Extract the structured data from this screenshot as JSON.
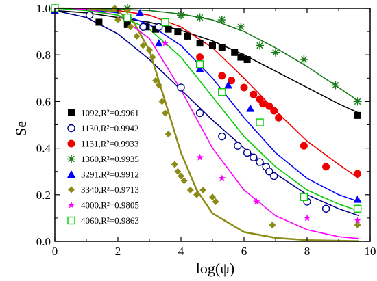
{
  "chart_data": {
    "type": "scatter",
    "xlabel": "log(ψ)",
    "ylabel": "Se",
    "xlim": [
      0,
      10
    ],
    "ylim": [
      0,
      1.0
    ],
    "x_ticks": [
      0,
      2,
      4,
      6,
      8,
      10
    ],
    "y_ticks": [
      0.0,
      0.2,
      0.4,
      0.6,
      0.8,
      1.0
    ],
    "x_tick_labels": [
      "0",
      "2",
      "4",
      "6",
      "8",
      "10"
    ],
    "y_tick_labels": [
      "0.0",
      "0.2",
      "0.4",
      "0.6",
      "0.8",
      "1.0"
    ],
    "legend_position": "left",
    "series": [
      {
        "name": "1092,R²=0.9961",
        "color": "#000000",
        "marker": "square-filled",
        "points": [
          [
            0,
            1.0
          ],
          [
            1.4,
            0.94
          ],
          [
            2.3,
            0.93
          ],
          [
            2.9,
            0.92
          ],
          [
            3.2,
            0.91
          ],
          [
            3.6,
            0.91
          ],
          [
            3.9,
            0.9
          ],
          [
            4.2,
            0.88
          ],
          [
            4.6,
            0.85
          ],
          [
            5.0,
            0.84
          ],
          [
            5.3,
            0.83
          ],
          [
            5.7,
            0.81
          ],
          [
            5.9,
            0.79
          ],
          [
            6.1,
            0.78
          ],
          [
            9.6,
            0.54
          ]
        ],
        "curve": [
          [
            0,
            0.99
          ],
          [
            1,
            0.98
          ],
          [
            2,
            0.96
          ],
          [
            3,
            0.94
          ],
          [
            4,
            0.905
          ],
          [
            5,
            0.86
          ],
          [
            6,
            0.8
          ],
          [
            7,
            0.73
          ],
          [
            8,
            0.66
          ],
          [
            9,
            0.59
          ],
          [
            9.65,
            0.55
          ]
        ]
      },
      {
        "name": "1130,R²=0.9942",
        "color": "#00008B",
        "marker": "circle-open",
        "points": [
          [
            0,
            1.0
          ],
          [
            1.1,
            0.97
          ],
          [
            2.3,
            0.96
          ],
          [
            2.8,
            0.92
          ],
          [
            3.3,
            0.92
          ],
          [
            4.0,
            0.66
          ],
          [
            4.6,
            0.55
          ],
          [
            5.3,
            0.45
          ],
          [
            5.8,
            0.41
          ],
          [
            6.1,
            0.38
          ],
          [
            6.3,
            0.36
          ],
          [
            6.5,
            0.34
          ],
          [
            6.7,
            0.32
          ],
          [
            6.8,
            0.3
          ],
          [
            6.95,
            0.28
          ],
          [
            8.0,
            0.17
          ],
          [
            8.6,
            0.14
          ],
          [
            9.6,
            0.14
          ]
        ],
        "curve": [
          [
            0,
            0.99
          ],
          [
            1,
            0.96
          ],
          [
            2,
            0.89
          ],
          [
            3,
            0.78
          ],
          [
            4,
            0.65
          ],
          [
            5,
            0.52
          ],
          [
            6,
            0.4
          ],
          [
            7,
            0.29
          ],
          [
            8,
            0.2
          ],
          [
            9,
            0.14
          ],
          [
            9.65,
            0.11
          ]
        ]
      },
      {
        "name": "1131,R²=0.9933",
        "color": "#EE0000",
        "marker": "circle-filled",
        "points": [
          [
            4.6,
            0.79
          ],
          [
            5.3,
            0.71
          ],
          [
            5.6,
            0.69
          ],
          [
            6.0,
            0.66
          ],
          [
            6.3,
            0.63
          ],
          [
            6.5,
            0.61
          ],
          [
            6.6,
            0.59
          ],
          [
            6.8,
            0.58
          ],
          [
            6.95,
            0.56
          ],
          [
            7.1,
            0.53
          ],
          [
            7.9,
            0.41
          ],
          [
            8.6,
            0.32
          ],
          [
            9.6,
            0.29
          ]
        ],
        "curve": [
          [
            0,
            0.999
          ],
          [
            1,
            0.997
          ],
          [
            2,
            0.99
          ],
          [
            3,
            0.97
          ],
          [
            4,
            0.92
          ],
          [
            5,
            0.83
          ],
          [
            6,
            0.7
          ],
          [
            7,
            0.56
          ],
          [
            8,
            0.43
          ],
          [
            9,
            0.33
          ],
          [
            9.65,
            0.27
          ]
        ]
      },
      {
        "name": "1360,R²=0.9935",
        "color": "#1A7A1A",
        "marker": "asterisk",
        "points": [
          [
            2.3,
            1.0
          ],
          [
            4.0,
            0.97
          ],
          [
            4.6,
            0.96
          ],
          [
            5.3,
            0.95
          ],
          [
            5.9,
            0.92
          ],
          [
            6.5,
            0.84
          ],
          [
            7.0,
            0.81
          ],
          [
            7.9,
            0.78
          ],
          [
            8.9,
            0.67
          ],
          [
            9.6,
            0.6
          ]
        ],
        "curve": [
          [
            0,
            1.0
          ],
          [
            1,
            0.999
          ],
          [
            2,
            0.996
          ],
          [
            3,
            0.99
          ],
          [
            4,
            0.975
          ],
          [
            5,
            0.95
          ],
          [
            6,
            0.9
          ],
          [
            7,
            0.83
          ],
          [
            8,
            0.75
          ],
          [
            9,
            0.66
          ],
          [
            9.65,
            0.6
          ]
        ]
      },
      {
        "name": "3291,R²=0.9912",
        "color": "#0000FF",
        "marker": "triangle-filled",
        "points": [
          [
            0,
            0.99
          ],
          [
            2.7,
            0.98
          ],
          [
            3.3,
            0.85
          ],
          [
            4.6,
            0.74
          ],
          [
            5.5,
            0.67
          ],
          [
            6.2,
            0.57
          ],
          [
            9.6,
            0.18
          ]
        ],
        "curve": [
          [
            0,
            1.0
          ],
          [
            1,
            0.995
          ],
          [
            2,
            0.98
          ],
          [
            3,
            0.93
          ],
          [
            4,
            0.84
          ],
          [
            5,
            0.7
          ],
          [
            6,
            0.53
          ],
          [
            7,
            0.38
          ],
          [
            8,
            0.27
          ],
          [
            9,
            0.2
          ],
          [
            9.65,
            0.17
          ]
        ]
      },
      {
        "name": "3340,R²=0.9713",
        "color": "#8B8B17",
        "marker": "diamond-filled",
        "points": [
          [
            1.9,
            1.0
          ],
          [
            2.3,
            0.99
          ],
          [
            2.0,
            0.95
          ],
          [
            2.4,
            0.92
          ],
          [
            2.6,
            0.88
          ],
          [
            2.8,
            0.84
          ],
          [
            3.0,
            0.82
          ],
          [
            3.1,
            0.79
          ],
          [
            3.2,
            0.69
          ],
          [
            3.3,
            0.67
          ],
          [
            3.4,
            0.6
          ],
          [
            3.5,
            0.55
          ],
          [
            3.6,
            0.46
          ],
          [
            3.8,
            0.33
          ],
          [
            3.9,
            0.3
          ],
          [
            4.0,
            0.28
          ],
          [
            4.1,
            0.26
          ],
          [
            4.3,
            0.22
          ],
          [
            4.5,
            0.2
          ],
          [
            4.7,
            0.22
          ],
          [
            5.0,
            0.19
          ],
          [
            5.1,
            0.17
          ],
          [
            6.9,
            0.07
          ],
          [
            9.6,
            0.07
          ]
        ],
        "curve": [
          [
            0,
            1.0
          ],
          [
            1,
            0.999
          ],
          [
            2,
            0.985
          ],
          [
            2.5,
            0.94
          ],
          [
            3,
            0.82
          ],
          [
            3.5,
            0.6
          ],
          [
            4,
            0.38
          ],
          [
            4.5,
            0.22
          ],
          [
            5,
            0.12
          ],
          [
            6,
            0.04
          ],
          [
            7,
            0.015
          ],
          [
            8,
            0.005
          ],
          [
            9.65,
            0.001
          ]
        ]
      },
      {
        "name": "4000,R²=0.9805",
        "color": "#FF00FF",
        "marker": "star",
        "points": [
          [
            3.5,
            0.85
          ],
          [
            4.6,
            0.36
          ],
          [
            5.3,
            0.27
          ],
          [
            6.4,
            0.17
          ],
          [
            8.0,
            0.1
          ],
          [
            9.6,
            0.09
          ]
        ],
        "curve": [
          [
            0,
            1.0
          ],
          [
            1,
            0.995
          ],
          [
            2,
            0.97
          ],
          [
            3,
            0.87
          ],
          [
            4,
            0.65
          ],
          [
            5,
            0.4
          ],
          [
            6,
            0.22
          ],
          [
            7,
            0.11
          ],
          [
            8,
            0.05
          ],
          [
            9,
            0.02
          ],
          [
            9.65,
            0.012
          ]
        ]
      },
      {
        "name": "4060,R²=0.9863",
        "color": "#00CC00",
        "marker": "square-open",
        "points": [
          [
            0,
            1.0
          ],
          [
            2.3,
            0.96
          ],
          [
            3.5,
            0.94
          ],
          [
            4.6,
            0.76
          ],
          [
            5.3,
            0.64
          ],
          [
            6.5,
            0.51
          ],
          [
            7.9,
            0.19
          ],
          [
            9.6,
            0.14
          ]
        ],
        "curve": [
          [
            0,
            1.0
          ],
          [
            1,
            0.99
          ],
          [
            2,
            0.97
          ],
          [
            3,
            0.91
          ],
          [
            4,
            0.79
          ],
          [
            5,
            0.62
          ],
          [
            6,
            0.45
          ],
          [
            7,
            0.32
          ],
          [
            8,
            0.22
          ],
          [
            9,
            0.16
          ],
          [
            9.65,
            0.13
          ]
        ]
      }
    ]
  }
}
